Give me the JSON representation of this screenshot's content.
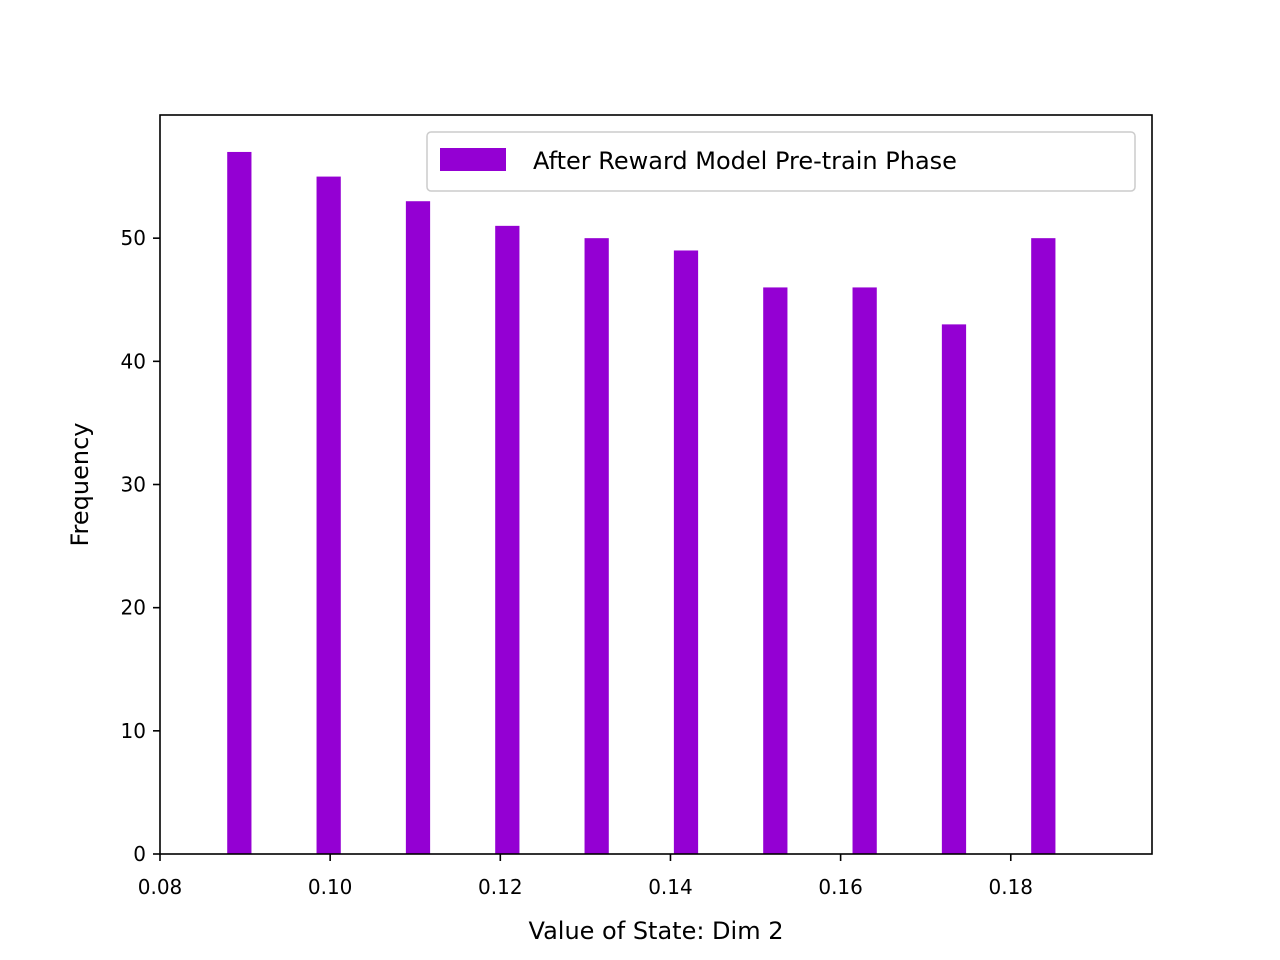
{
  "chart_data": {
    "type": "bar",
    "title": "",
    "xlabel": "Value of State: Dim 2",
    "ylabel": "Frequency",
    "x": [
      0.0879,
      0.0984,
      0.1089,
      0.1194,
      0.1299,
      0.1404,
      0.1509,
      0.1614,
      0.1719,
      0.1824
    ],
    "bin_width": 0.00285,
    "series": [
      {
        "name": "After Reward Model Pre-train Phase",
        "color": "#9400d3",
        "values": [
          57,
          55,
          53,
          51,
          50,
          49,
          46,
          46,
          43,
          50
        ]
      }
    ],
    "xlim": [
      0.08,
      0.1966
    ],
    "ylim": [
      0,
      60
    ],
    "xticks": [
      0.08,
      0.1,
      0.12,
      0.14,
      0.16,
      0.18
    ],
    "xtick_labels": [
      "0.08",
      "0.10",
      "0.12",
      "0.14",
      "0.16",
      "0.18"
    ],
    "yticks": [
      0,
      10,
      20,
      30,
      40,
      50
    ],
    "ytick_labels": [
      "0",
      "10",
      "20",
      "30",
      "40",
      "50"
    ],
    "grid": false,
    "legend_position": "upper right"
  }
}
